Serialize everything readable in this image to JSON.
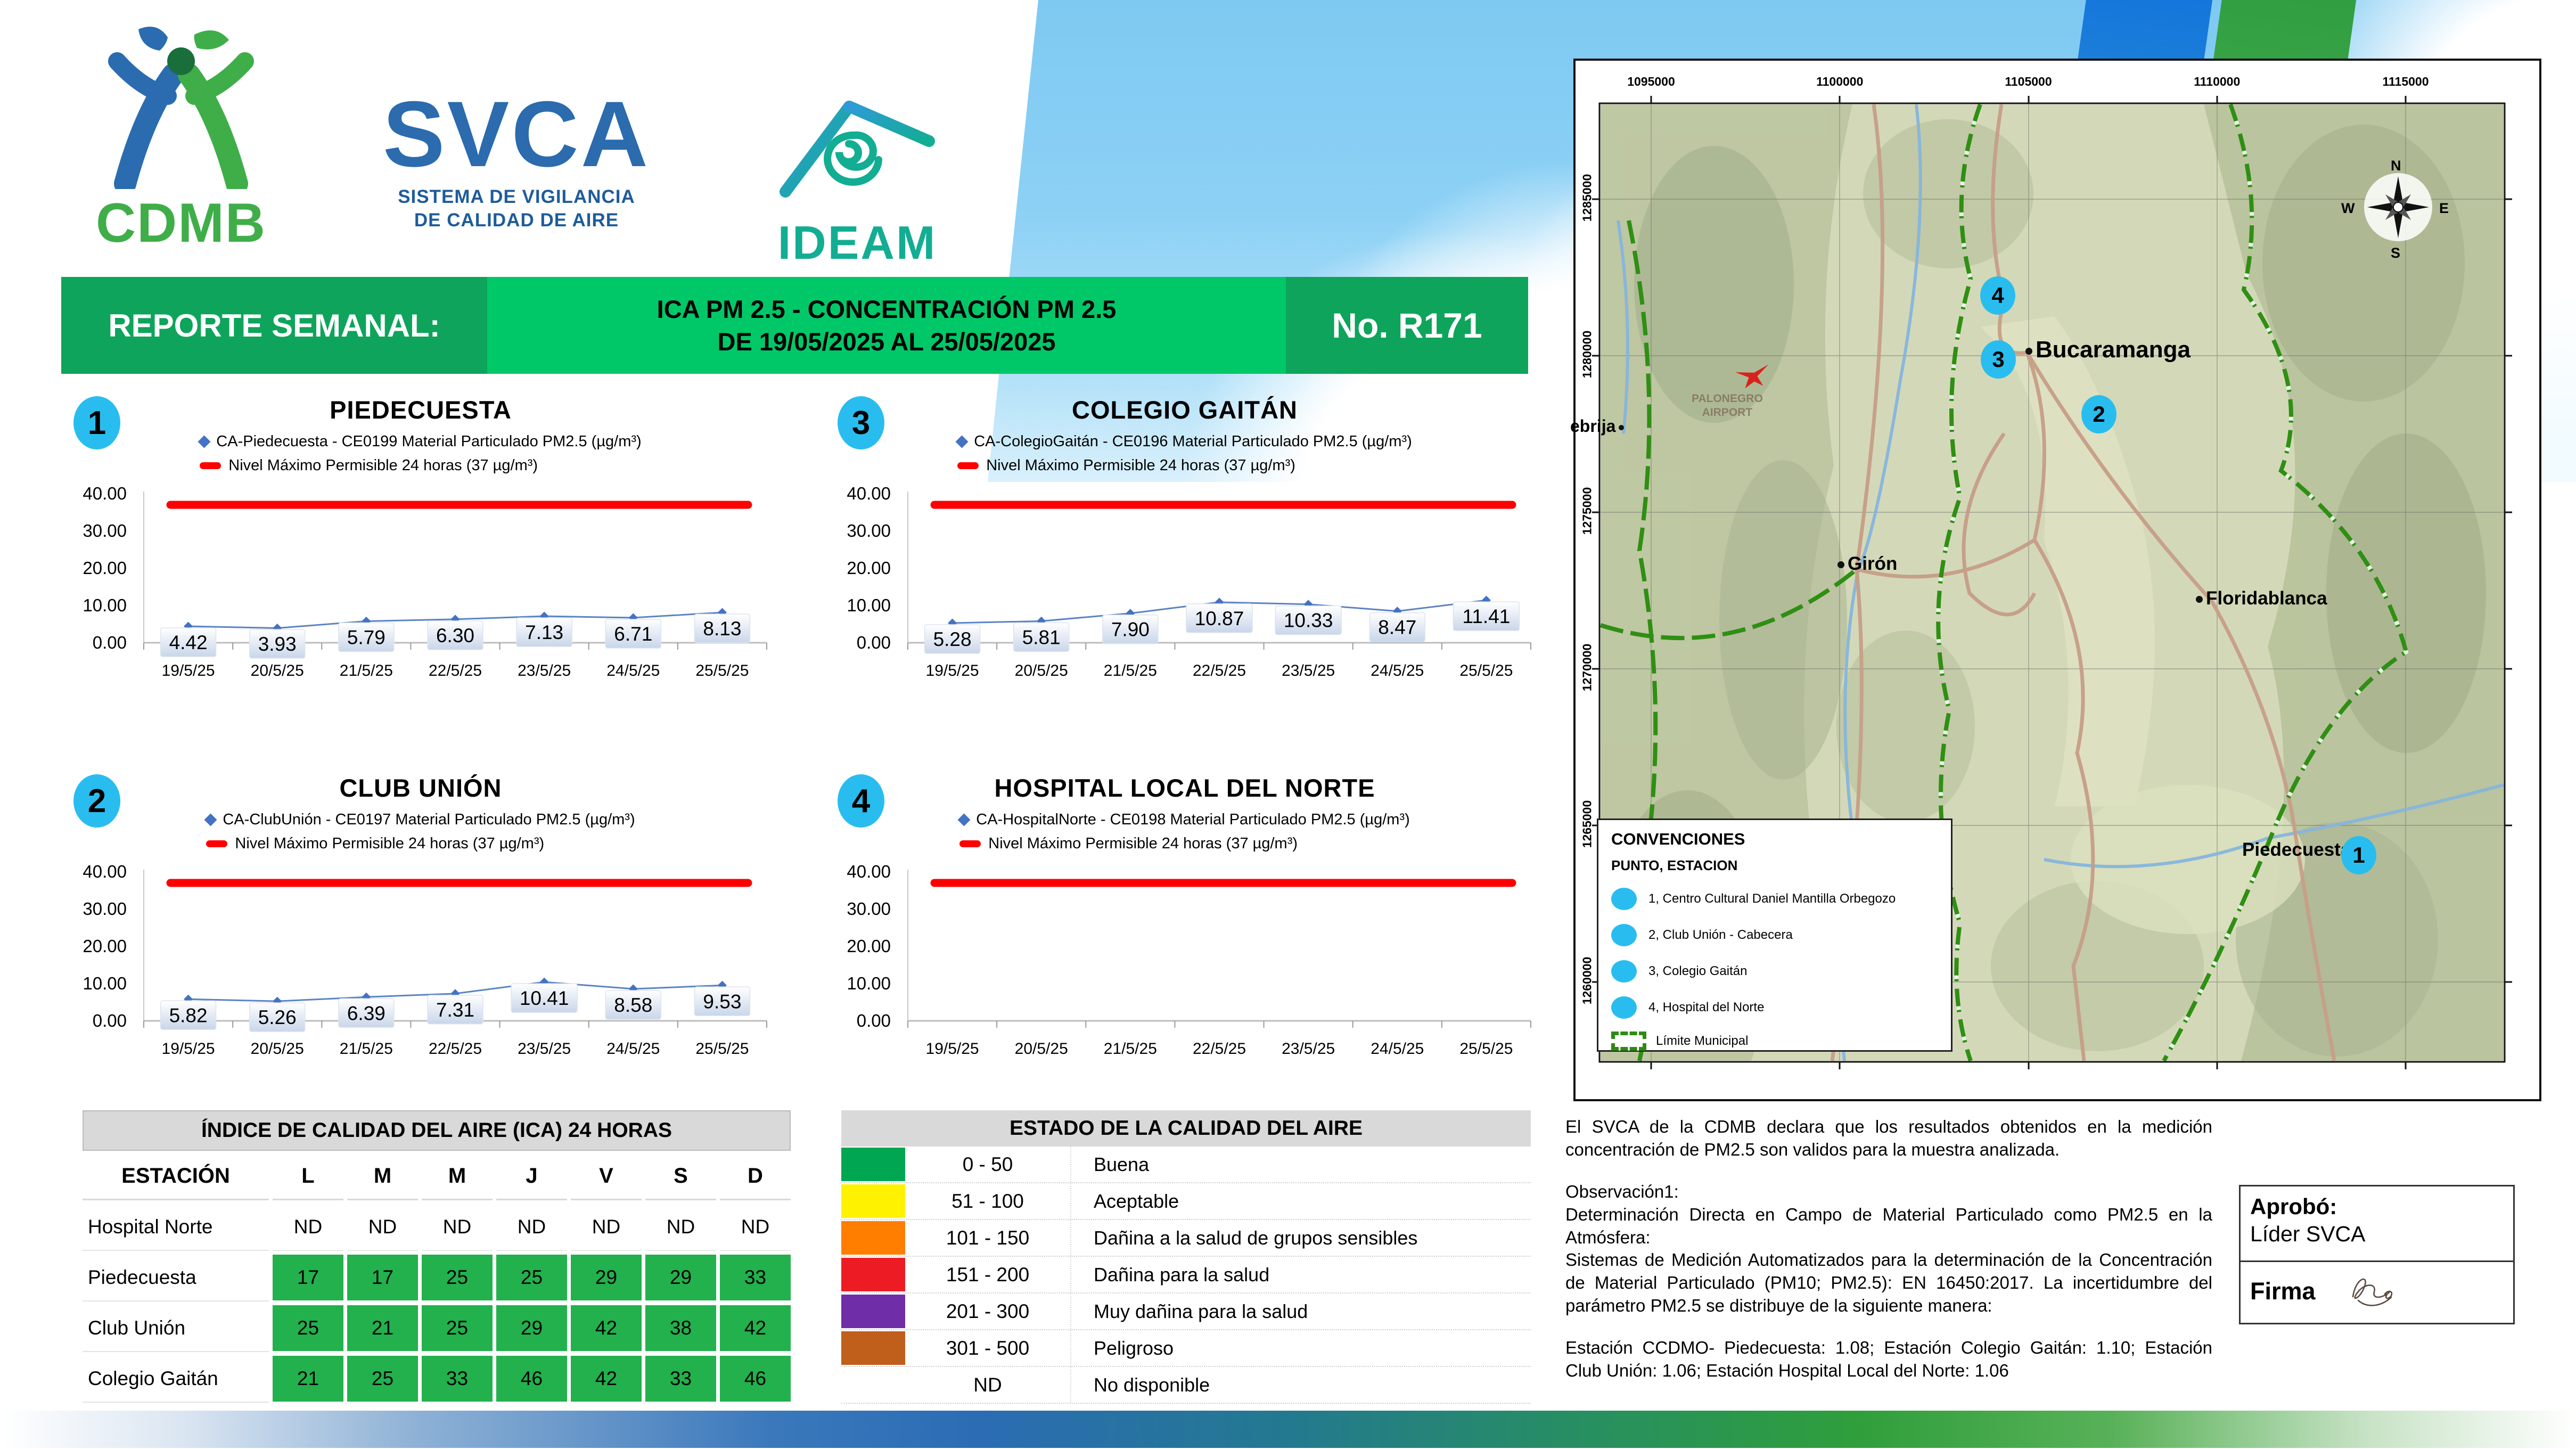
{
  "header": {
    "cdmb_text": "CDMB",
    "svca_text": "SVCA",
    "svca_sub1": "SISTEMA DE VIGILANCIA",
    "svca_sub2": "DE CALIDAD DE AIRE",
    "ideam_text": "IDEAM"
  },
  "banner": {
    "report_label": "REPORTE SEMANAL:",
    "title_line1": "ICA PM 2.5 - CONCENTRACIÓN PM 2.5",
    "title_line2": "DE 19/05/2025 AL 25/05/2025",
    "number": "No. R171"
  },
  "chart_axis": {
    "ymin": 0,
    "ymax": 40,
    "limit": 37,
    "yticks": [
      "40.00",
      "30.00",
      "20.00",
      "10.00",
      "0.00"
    ],
    "grid": false,
    "legend_position": "top"
  },
  "chart_data": [
    {
      "type": "line",
      "number": "1",
      "title": "PIEDECUESTA",
      "series_label": "CA-Piedecuesta - CE0199 Material Particulado PM2.5 (µg/m³)",
      "limit_label": "Nivel Máximo Permisible 24 horas (37 µg/m³)",
      "categories": [
        "19/5/25",
        "20/5/25",
        "21/5/25",
        "22/5/25",
        "23/5/25",
        "24/5/25",
        "25/5/25"
      ],
      "values": [
        4.42,
        3.93,
        5.79,
        6.3,
        7.13,
        6.71,
        8.13
      ],
      "value_labels": [
        "4.42",
        "3.93",
        "5.79",
        "6.30",
        "7.13",
        "6.71",
        "8.13"
      ]
    },
    {
      "type": "line",
      "number": "2",
      "title": "CLUB UNIÓN",
      "series_label": "CA-ClubUnión - CE0197 Material Particulado PM2.5 (µg/m³)",
      "limit_label": "Nivel Máximo Permisible 24 horas (37 µg/m³)",
      "categories": [
        "19/5/25",
        "20/5/25",
        "21/5/25",
        "22/5/25",
        "23/5/25",
        "24/5/25",
        "25/5/25"
      ],
      "values": [
        5.82,
        5.26,
        6.39,
        7.31,
        10.41,
        8.58,
        9.53
      ],
      "value_labels": [
        "5.82",
        "5.26",
        "6.39",
        "7.31",
        "10.41",
        "8.58",
        "9.53"
      ]
    },
    {
      "type": "line",
      "number": "3",
      "title": "COLEGIO GAITÁN",
      "series_label": "CA-ColegioGaitán - CE0196 Material Particulado PM2.5 (µg/m³)",
      "limit_label": "Nivel Máximo Permisible 24 horas (37 µg/m³)",
      "categories": [
        "19/5/25",
        "20/5/25",
        "21/5/25",
        "22/5/25",
        "23/5/25",
        "24/5/25",
        "25/5/25"
      ],
      "values": [
        5.28,
        5.81,
        7.9,
        10.87,
        10.33,
        8.47,
        11.41
      ],
      "value_labels": [
        "5.28",
        "5.81",
        "7.90",
        "10.87",
        "10.33",
        "8.47",
        "11.41"
      ]
    },
    {
      "type": "line",
      "number": "4",
      "title": "HOSPITAL LOCAL DEL NORTE",
      "series_label": "CA-HospitalNorte - CE0198 Material Particulado PM2.5 (µg/m³)",
      "limit_label": "Nivel Máximo Permisible 24 horas (37 µg/m³)",
      "categories": [
        "19/5/25",
        "20/5/25",
        "21/5/25",
        "22/5/25",
        "23/5/25",
        "24/5/25",
        "25/5/25"
      ],
      "values": [],
      "value_labels": []
    }
  ],
  "map": {
    "axis": {
      "x": [
        "1095000",
        "1100000",
        "1105000",
        "1110000",
        "1115000"
      ],
      "y": [
        "1285000",
        "1280000",
        "1275000",
        "1270000",
        "1265000",
        "1260000"
      ]
    },
    "places": {
      "bucaramanga": "Bucaramanga",
      "giron": "Girón",
      "floridablanca": "Floridablanca",
      "piedecuesta": "Piedecuesta",
      "lebrija": "ebrija",
      "airport_line1": "PALONEGRO",
      "airport_line2": "AIRPORT"
    },
    "markers": [
      {
        "label": "4"
      },
      {
        "label": "3"
      },
      {
        "label": "2"
      },
      {
        "label": "1"
      }
    ],
    "compass": {
      "n": "N",
      "s": "S",
      "e": "E",
      "w": "W"
    },
    "legend": {
      "title": "CONVENCIONES",
      "subtitle": "PUNTO, ESTACION",
      "items": [
        "1, Centro Cultural Daniel Mantilla Orbegozo",
        "2, Club Unión - Cabecera",
        "3, Colegio Gaitán",
        "4, Hospital del Norte"
      ],
      "limite": "Límite Municipal"
    }
  },
  "ica_table": {
    "title": "ÍNDICE DE CALIDAD DEL AIRE (ICA) 24 HORAS",
    "columns": [
      "ESTACIÓN",
      "L",
      "M",
      "M",
      "J",
      "V",
      "S",
      "D"
    ],
    "highlight_color": "#22B14C",
    "rows": [
      {
        "station": "Hospital Norte",
        "values": [
          "ND",
          "ND",
          "ND",
          "ND",
          "ND",
          "ND",
          "ND"
        ],
        "highlight": false
      },
      {
        "station": "Piedecuesta",
        "values": [
          "17",
          "17",
          "25",
          "25",
          "29",
          "29",
          "33"
        ],
        "highlight": true
      },
      {
        "station": "Club Unión",
        "values": [
          "25",
          "21",
          "25",
          "29",
          "42",
          "38",
          "42"
        ],
        "highlight": true
      },
      {
        "station": "Colegio Gaitán",
        "values": [
          "21",
          "25",
          "33",
          "46",
          "42",
          "33",
          "46"
        ],
        "highlight": true
      }
    ]
  },
  "estado_table": {
    "title": "ESTADO DE LA CALIDAD DEL AIRE",
    "rows": [
      {
        "color": "#00A651",
        "range": "0 - 50",
        "label": "Buena"
      },
      {
        "color": "#FFF200",
        "range": "51 - 100",
        "label": "Aceptable"
      },
      {
        "color": "#FF7E00",
        "range": "101 - 150",
        "label": "Dañina a la salud de grupos sensibles"
      },
      {
        "color": "#ED1C24",
        "range": "151 - 200",
        "label": "Dañina para la salud"
      },
      {
        "color": "#6F2DA8",
        "range": "201 - 300",
        "label": "Muy dañina para la salud"
      },
      {
        "color": "#C05E1B",
        "range": "301 - 500",
        "label": "Peligroso"
      },
      {
        "color": "",
        "range": "ND",
        "label": "No disponible"
      }
    ]
  },
  "notes": {
    "p1": "El SVCA  de la CDMB declara que los resultados obtenidos en la medición concentración de PM2.5 son validos para la muestra  analizada.",
    "obs_title": "Observación1:",
    "obs1": "Determinación Directa en Campo de Material Particulado como PM2.5 en la Atmósfera:",
    "obs2": "Sistemas de Medición Automatizados para la  determinación de la Concentración de Material Particulado (PM10;  PM2.5): EN 16450:2017. La incertidumbre del parámetro PM2.5 se distribuye de la siguiente manera:",
    "p2": "Estación CCDMO- Piedecuesta: 1.08; Estación Colegio Gaitán: 1.10; Estación Club Unión: 1.06; Estación Hospital Local del Norte: 1.06"
  },
  "approval": {
    "label": "Aprobó:",
    "role": "Líder SVCA",
    "firma_label": "Firma"
  },
  "colors": {
    "banner_dark_green": "#0EA45B",
    "banner_bright_green": "#00C868",
    "badge_cyan": "#29BDEF",
    "series_blue": "#4472C4",
    "limit_red": "#FF0000",
    "table_green": "#22B14C"
  }
}
